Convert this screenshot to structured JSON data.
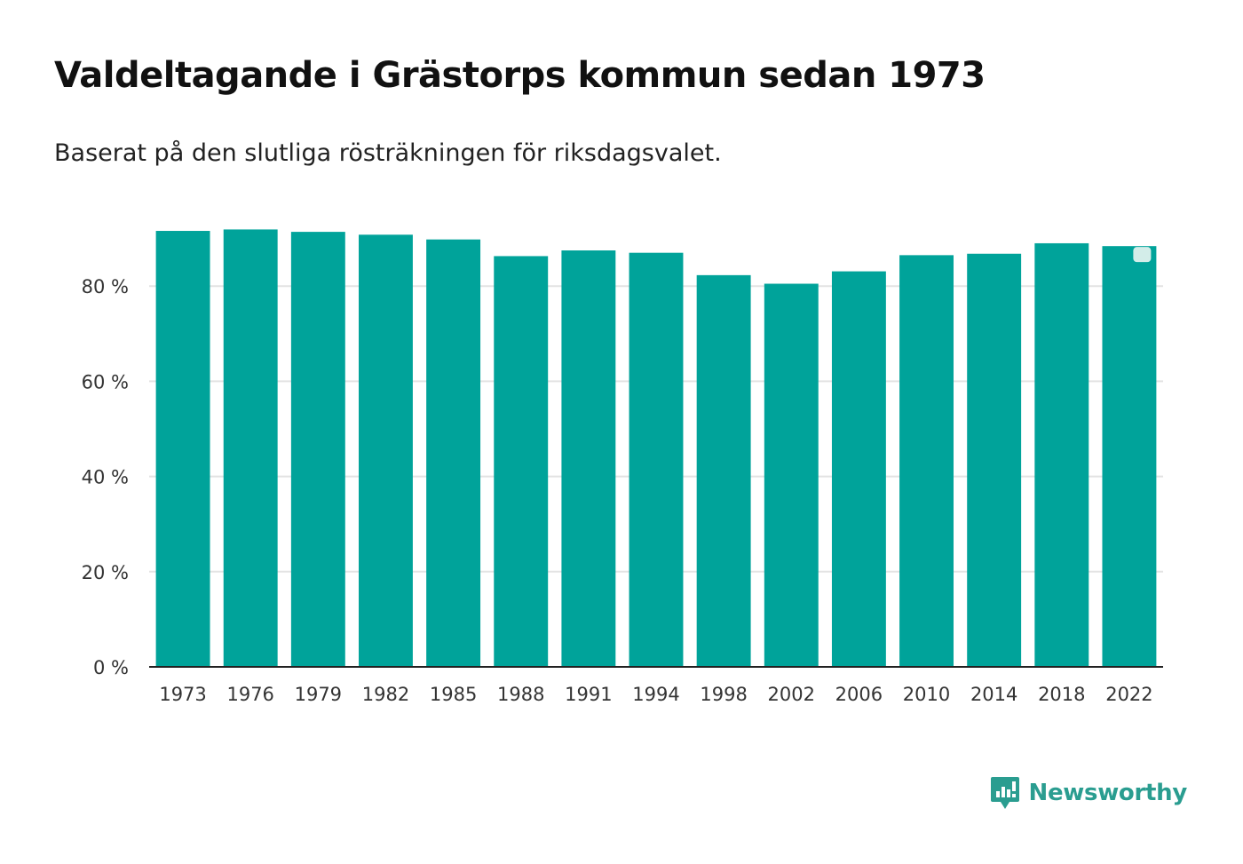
{
  "chart_data": {
    "type": "bar",
    "title": "Valdeltagande i Grästorps kommun sedan 1973",
    "subtitle": "Baserat på den slutliga rösträkningen för riksdagsvalet.",
    "xlabel": "",
    "ylabel": "",
    "ylim": [
      0,
      100
    ],
    "yticks": [
      0,
      20,
      40,
      60,
      80
    ],
    "ytick_labels": [
      "0 %",
      "20 %",
      "40 %",
      "60 %",
      "80 %"
    ],
    "grid": true,
    "categories": [
      "1973",
      "1976",
      "1979",
      "1982",
      "1985",
      "1988",
      "1991",
      "1994",
      "1998",
      "2002",
      "2006",
      "2010",
      "2014",
      "2018",
      "2022"
    ],
    "values": [
      91.6,
      91.9,
      91.4,
      90.8,
      89.8,
      86.3,
      87.5,
      87.0,
      82.3,
      80.5,
      83.1,
      86.5,
      86.8,
      89.0,
      88.4
    ],
    "highlight_last": true
  },
  "colors": {
    "bar": "#00a39a",
    "marker": "#d3ede9",
    "grid": "#e3e3e3",
    "axis": "#222222",
    "brand": "#2a9d90"
  },
  "brand": {
    "name": "Newsworthy",
    "icon": "newsworthy-logo-icon"
  }
}
